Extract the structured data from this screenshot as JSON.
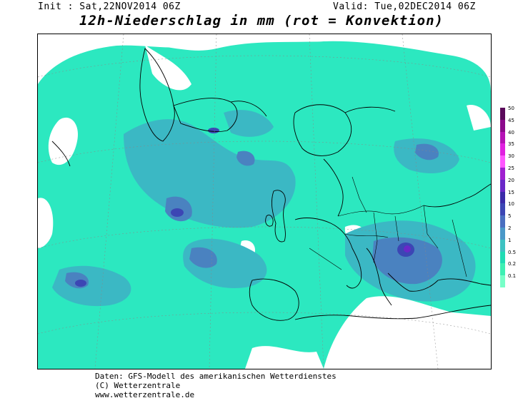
{
  "header": {
    "init": "Init : Sat,22NOV2014 06Z",
    "valid": "Valid: Tue,02DEC2014 06Z",
    "title": "12h-Niederschlag in mm (rot = Konvektion)"
  },
  "legend": {
    "levels": [
      {
        "label": "50",
        "color": "#5a0a5a"
      },
      {
        "label": "45",
        "color": "#8b0a8b"
      },
      {
        "label": "40",
        "color": "#b512b5"
      },
      {
        "label": "35",
        "color": "#e020e0"
      },
      {
        "label": "30",
        "color": "#ff55ff"
      },
      {
        "label": "25",
        "color": "#a020d0"
      },
      {
        "label": "20",
        "color": "#6a28c8"
      },
      {
        "label": "15",
        "color": "#3a2aa8"
      },
      {
        "label": "10",
        "color": "#3c46b4"
      },
      {
        "label": "5",
        "color": "#4a6fc0"
      },
      {
        "label": "2",
        "color": "#4a98c8"
      },
      {
        "label": "1",
        "color": "#3dc2c2"
      },
      {
        "label": "0.5",
        "color": "#20dcb4"
      },
      {
        "label": "0.2",
        "color": "#3ef0b4"
      },
      {
        "label": "0.1",
        "color": "#78ffc8"
      }
    ]
  },
  "footer": {
    "line1": "Daten: GFS-Modell des amerikanischen Wetterdienstes",
    "line2": "(C) Wetterzentrale",
    "line3": "www.wetterzentrale.de"
  },
  "colors": {
    "light": "#2ce8c0",
    "mid": "#3bb8c4",
    "heavy": "#4a82c0",
    "strong": "#3c46b4",
    "intense": "#6a28c8"
  }
}
